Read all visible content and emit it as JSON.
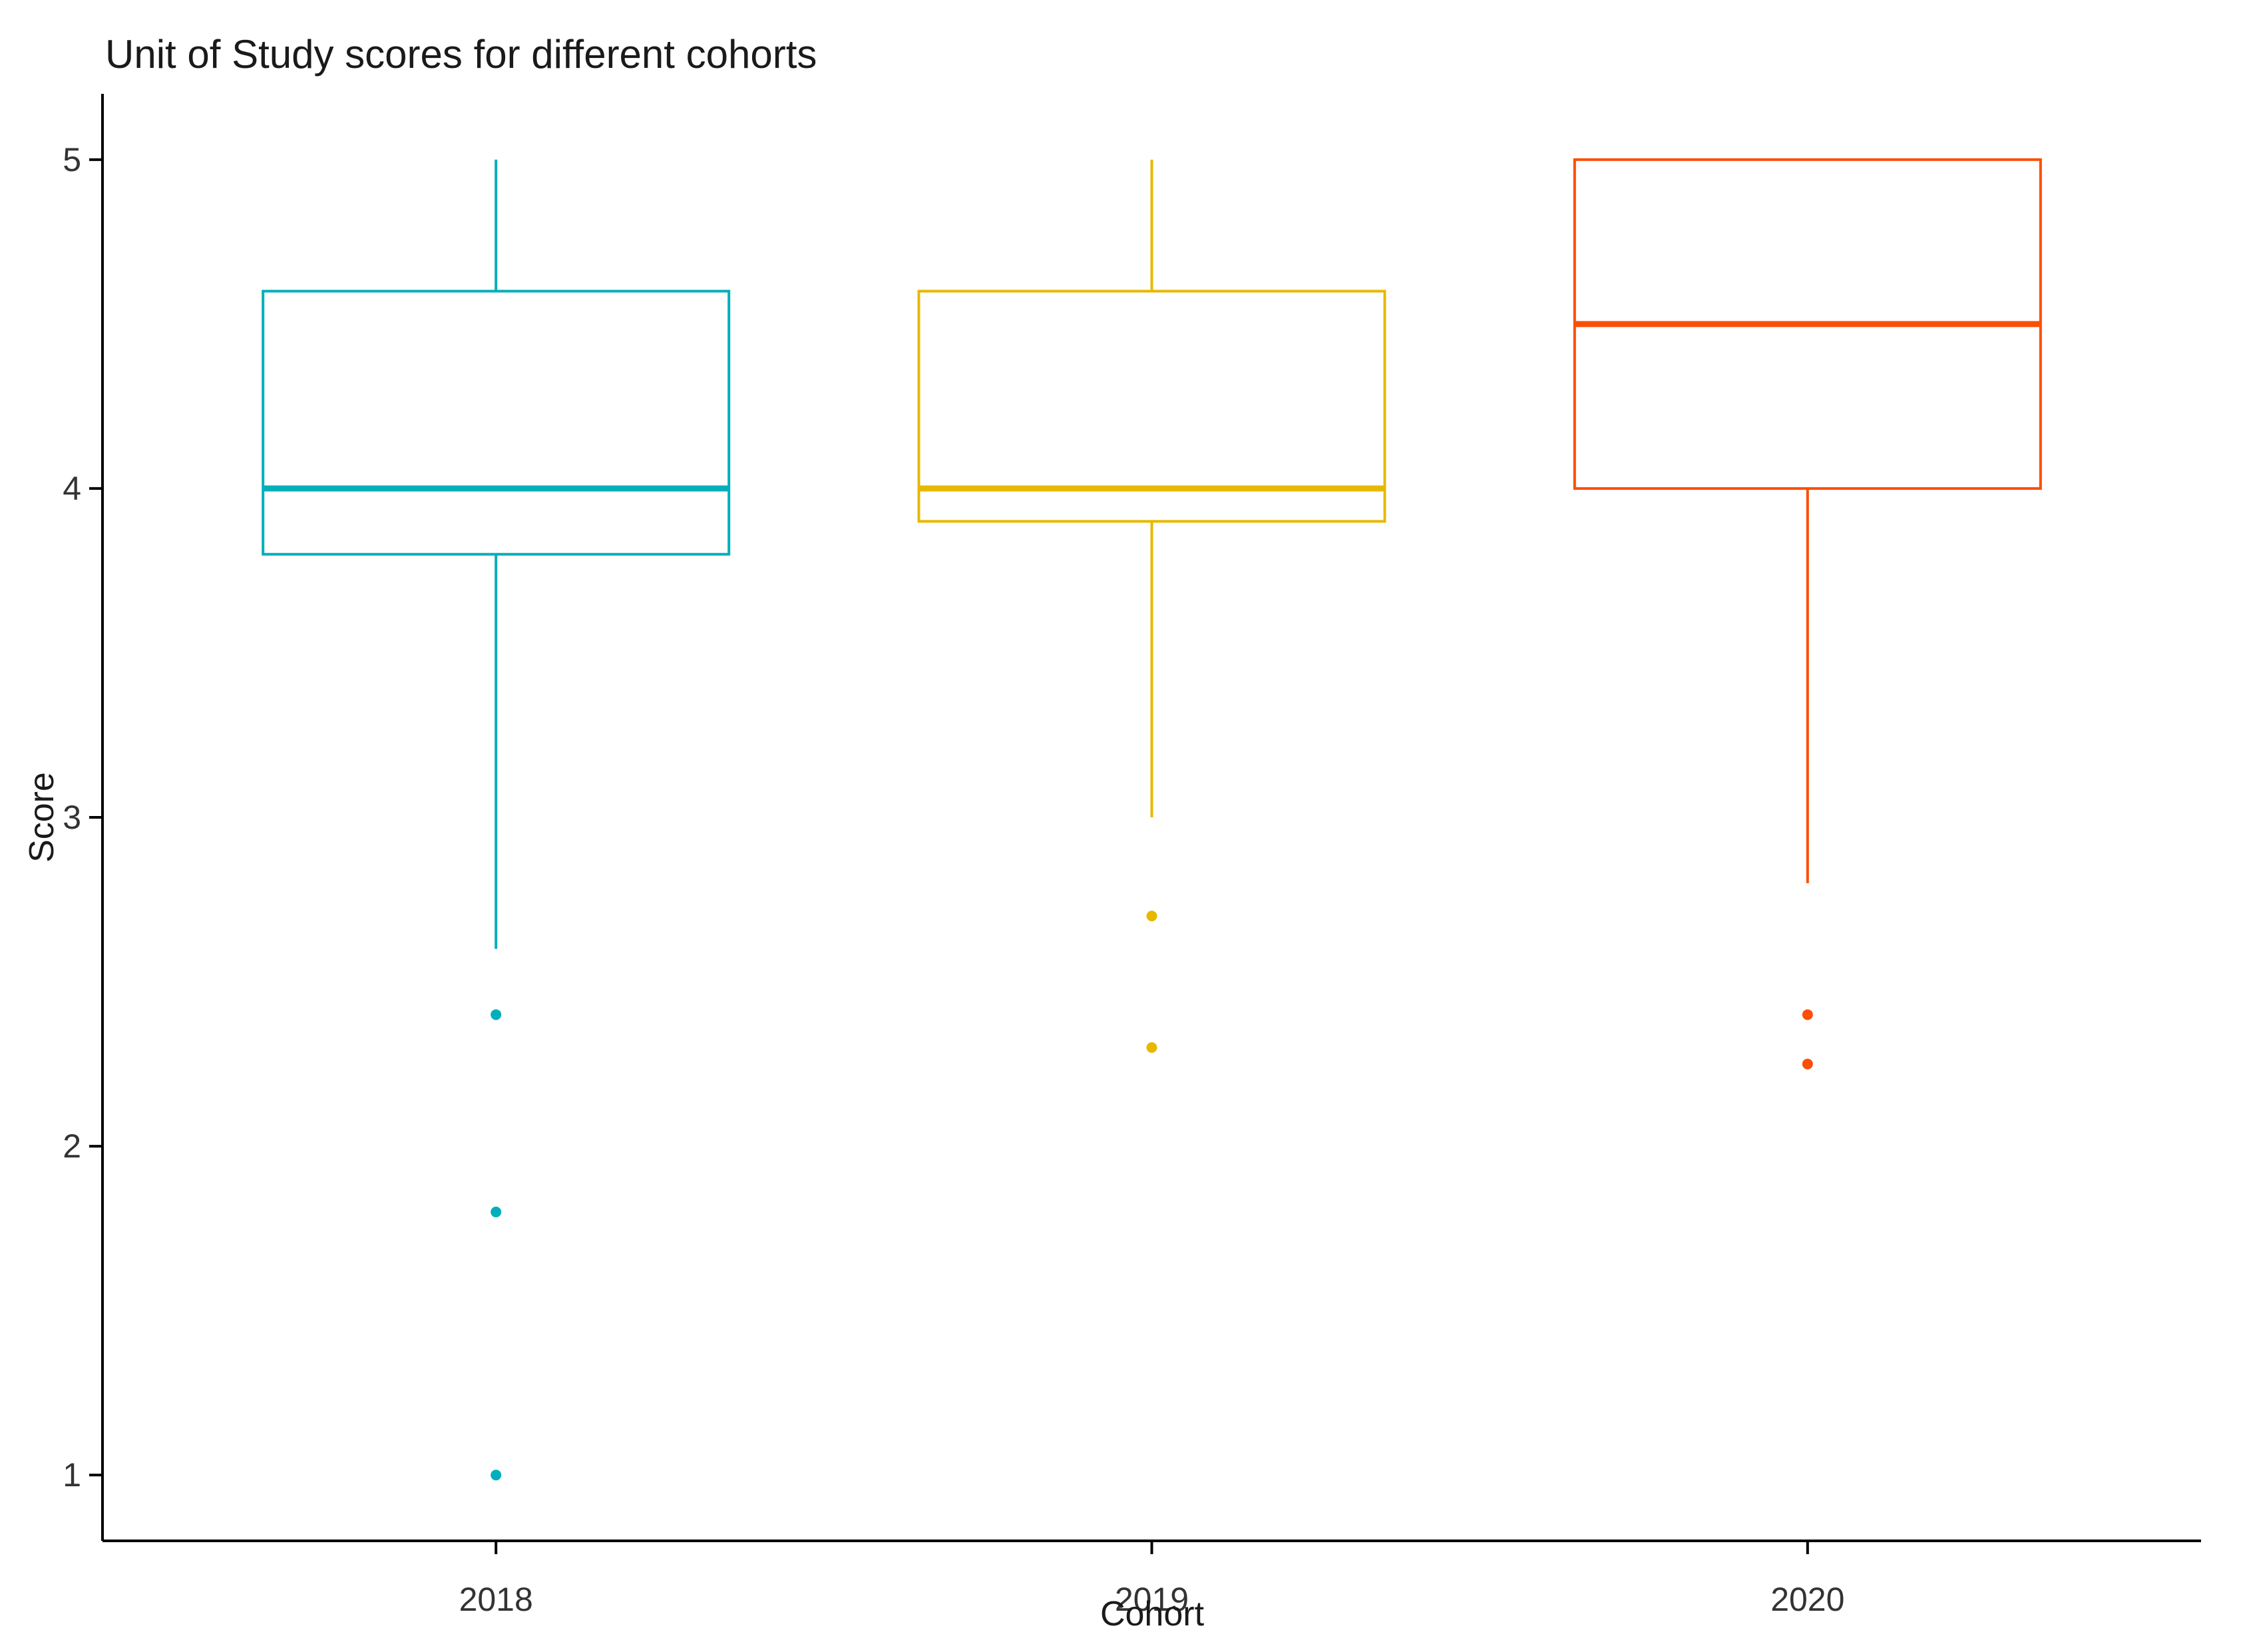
{
  "title": "Unit of Study scores for different cohorts",
  "chart_data": {
    "type": "boxplot",
    "title": "Unit of Study scores for different cohorts",
    "xlabel": "Cohort",
    "ylabel": "Score",
    "categories": [
      "2018",
      "2019",
      "2020"
    ],
    "yticks": [
      1,
      2,
      3,
      4,
      5
    ],
    "ylim": [
      0.8,
      5.2
    ],
    "grid": "off",
    "legend": "none",
    "series": [
      {
        "name": "2018",
        "color": "#00AFBB",
        "whisker_high": 5.0,
        "q3": 4.6,
        "median": 4.0,
        "q1": 3.8,
        "whisker_low": 2.6,
        "outliers": [
          2.4,
          1.8,
          1.0
        ]
      },
      {
        "name": "2019",
        "color": "#E7B800",
        "whisker_high": 5.0,
        "q3": 4.6,
        "median": 4.0,
        "q1": 3.9,
        "whisker_low": 3.0,
        "outliers": [
          2.7,
          2.3
        ]
      },
      {
        "name": "2020",
        "color": "#FC4E07",
        "whisker_high": 5.0,
        "q3": 5.0,
        "median": 4.5,
        "q1": 4.0,
        "whisker_low": 2.8,
        "outliers": [
          2.4,
          2.25
        ]
      }
    ]
  },
  "colors": {
    "background": "#ffffff",
    "axis_line": "#000000",
    "tick_label": "#333333",
    "title_text": "#1a1a1a"
  }
}
